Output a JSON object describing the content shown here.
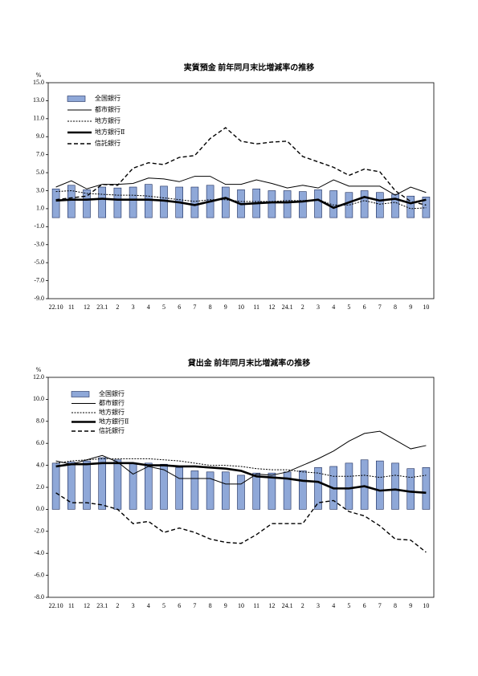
{
  "chart_data": [
    {
      "type": "combo",
      "title": "実質預金 前年同月末比増減率の推移",
      "y_unit": "%",
      "legend": "upper left",
      "categories": [
        "22.10",
        "11",
        "12",
        "23.1",
        "2",
        "3",
        "4",
        "5",
        "6",
        "7",
        "8",
        "9",
        "10",
        "11",
        "12",
        "24.1",
        "2",
        "3",
        "4",
        "5",
        "6",
        "7",
        "8",
        "9",
        "10"
      ],
      "ylim": [
        -9,
        15
      ],
      "yticks": [
        {
          "value": -9,
          "label": "-9.0"
        },
        {
          "value": -7,
          "label": "-7.0"
        },
        {
          "value": -5,
          "label": "-5.0"
        },
        {
          "value": -3,
          "label": "-3.0"
        },
        {
          "value": -1,
          "label": "-1.0"
        },
        {
          "value": 1,
          "label": "1.0"
        },
        {
          "value": 3,
          "label": "3.0"
        },
        {
          "value": 5,
          "label": "5.0"
        },
        {
          "value": 7,
          "label": "7.0"
        },
        {
          "value": 9,
          "label": "9.0"
        },
        {
          "value": 11,
          "label": "11.0"
        },
        {
          "value": 13,
          "label": "13.0"
        },
        {
          "value": 15,
          "label": "15.0"
        }
      ],
      "series": [
        {
          "name": "全国銀行",
          "kind": "bar",
          "color": "#8fa8d8",
          "values": [
            3.2,
            3.6,
            3.1,
            3.4,
            3.3,
            3.4,
            3.7,
            3.5,
            3.4,
            3.4,
            3.6,
            3.4,
            3.1,
            3.2,
            3.0,
            3.0,
            2.9,
            3.1,
            3.0,
            2.8,
            3.0,
            2.8,
            2.6,
            2.4,
            2.3
          ]
        },
        {
          "name": "都市銀行",
          "kind": "line",
          "style": "solid",
          "color": "#000000",
          "values": [
            3.4,
            4.1,
            3.2,
            3.7,
            3.7,
            3.8,
            4.4,
            4.3,
            4.0,
            4.6,
            4.6,
            3.7,
            3.7,
            4.2,
            3.8,
            3.3,
            3.6,
            3.3,
            4.2,
            3.5,
            3.5,
            3.5,
            2.5,
            3.4,
            2.8
          ]
        },
        {
          "name": "地方銀行",
          "kind": "line",
          "style": "dotted",
          "color": "#000000",
          "values": [
            2.9,
            3.0,
            2.7,
            2.6,
            2.5,
            2.5,
            2.4,
            2.2,
            2.0,
            1.8,
            2.0,
            2.0,
            1.8,
            1.8,
            1.8,
            1.9,
            1.9,
            2.0,
            1.4,
            1.4,
            1.9,
            1.5,
            1.7,
            1.0,
            1.1
          ]
        },
        {
          "name": "地方銀行Ⅱ",
          "kind": "line",
          "style": "thick",
          "color": "#000000",
          "values": [
            1.9,
            2.0,
            2.0,
            2.1,
            2.0,
            2.0,
            2.0,
            1.9,
            1.7,
            1.4,
            1.8,
            2.2,
            1.5,
            1.6,
            1.7,
            1.7,
            1.8,
            2.0,
            1.1,
            1.7,
            2.3,
            1.9,
            2.1,
            1.6,
            2.0
          ]
        },
        {
          "name": "信託銀行",
          "kind": "line",
          "style": "dashed",
          "color": "#000000",
          "values": [
            2.0,
            2.2,
            2.4,
            3.7,
            3.6,
            5.5,
            6.1,
            5.9,
            6.7,
            6.9,
            8.8,
            10.0,
            8.5,
            8.2,
            8.4,
            8.5,
            6.8,
            6.2,
            5.6,
            4.7,
            5.4,
            5.1,
            3.0,
            1.8,
            1.4
          ]
        }
      ]
    },
    {
      "type": "combo",
      "title": "貸出金 前年同月末比増減率の推移",
      "y_unit": "%",
      "legend": "upper left",
      "categories": [
        "22.10",
        "11",
        "12",
        "23.1",
        "2",
        "3",
        "4",
        "5",
        "6",
        "7",
        "8",
        "9",
        "10",
        "11",
        "12",
        "24.1",
        "2",
        "3",
        "4",
        "5",
        "6",
        "7",
        "8",
        "9",
        "10"
      ],
      "ylim": [
        -8,
        12
      ],
      "yticks": [
        {
          "value": -8,
          "label": "-8.0"
        },
        {
          "value": -6,
          "label": "-6.0"
        },
        {
          "value": -4,
          "label": "-4.0"
        },
        {
          "value": -2,
          "label": "-2.0"
        },
        {
          "value": 0,
          "label": "0.0"
        },
        {
          "value": 2,
          "label": "2.0"
        },
        {
          "value": 4,
          "label": "4.0"
        },
        {
          "value": 6,
          "label": "6.0"
        },
        {
          "value": 8,
          "label": "8.0"
        },
        {
          "value": 10,
          "label": "10.0"
        },
        {
          "value": 12,
          "label": "12.0"
        }
      ],
      "series": [
        {
          "name": "全国銀行",
          "kind": "bar",
          "color": "#8fa8d8",
          "values": [
            4.2,
            4.3,
            4.4,
            4.7,
            4.5,
            4.2,
            4.2,
            4.1,
            3.8,
            3.5,
            3.4,
            3.4,
            3.1,
            3.3,
            3.3,
            3.4,
            3.5,
            3.8,
            3.9,
            4.2,
            4.5,
            4.4,
            4.2,
            3.7,
            3.8
          ]
        },
        {
          "name": "都市銀行",
          "kind": "line",
          "style": "solid",
          "color": "#000000",
          "values": [
            4.4,
            4.1,
            4.5,
            4.9,
            4.3,
            3.2,
            3.9,
            3.6,
            2.8,
            2.8,
            2.8,
            2.3,
            2.3,
            3.2,
            3.1,
            3.4,
            4.0,
            4.6,
            5.3,
            6.2,
            6.9,
            7.1,
            6.3,
            5.5,
            5.8
          ]
        },
        {
          "name": "地方銀行",
          "kind": "line",
          "style": "dotted",
          "color": "#000000",
          "values": [
            4.2,
            4.4,
            4.5,
            4.6,
            4.6,
            4.6,
            4.6,
            4.5,
            4.4,
            4.2,
            4.0,
            4.0,
            3.9,
            3.7,
            3.6,
            3.6,
            3.4,
            3.3,
            3.0,
            3.0,
            3.1,
            2.9,
            3.1,
            2.9,
            3.1
          ]
        },
        {
          "name": "地方銀行Ⅱ",
          "kind": "line",
          "style": "thick",
          "color": "#000000",
          "values": [
            3.9,
            4.1,
            4.1,
            4.2,
            4.2,
            4.2,
            4.0,
            4.0,
            3.9,
            3.9,
            3.8,
            3.7,
            3.5,
            3.0,
            2.9,
            2.8,
            2.6,
            2.5,
            1.9,
            1.9,
            2.1,
            1.7,
            1.8,
            1.6,
            1.5
          ]
        },
        {
          "name": "信託銀行",
          "kind": "line",
          "style": "dashed",
          "color": "#000000",
          "values": [
            1.5,
            0.6,
            0.6,
            0.4,
            0.0,
            -1.3,
            -1.1,
            -2.1,
            -1.7,
            -2.1,
            -2.7,
            -3.0,
            -3.1,
            -2.3,
            -1.3,
            -1.3,
            -1.3,
            0.6,
            0.8,
            -0.2,
            -0.6,
            -1.5,
            -2.7,
            -2.8,
            -3.9
          ]
        }
      ]
    }
  ]
}
